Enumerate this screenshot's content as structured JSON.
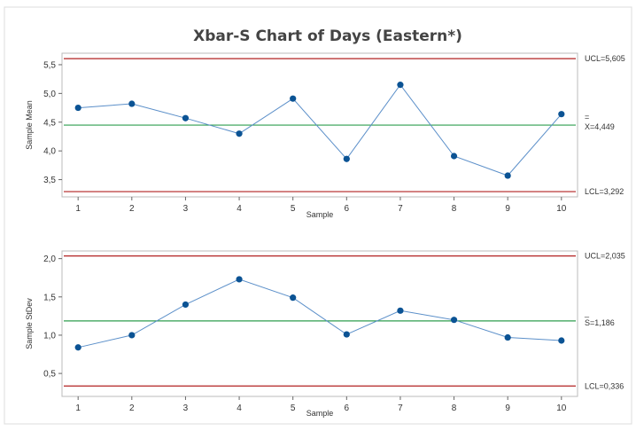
{
  "chart_data": {
    "type": "line",
    "title": "Xbar-S Chart of Days (Eastern*)",
    "colors": {
      "points": "#0b5394",
      "line": "#5b8fc9",
      "center_line": "#2e9e4f",
      "limit_line": "#b22222",
      "frame": "#bbbbbb"
    },
    "panels": [
      {
        "name": "mean",
        "xlabel": "Sample",
        "ylabel": "Sample Mean",
        "xlim": [
          0.7,
          10.3
        ],
        "ylim": [
          3.2,
          5.7
        ],
        "x_ticks": [
          "1",
          "2",
          "3",
          "4",
          "5",
          "6",
          "7",
          "8",
          "9",
          "10"
        ],
        "y_ticks": [
          {
            "value": 3.5,
            "label": "3,5"
          },
          {
            "value": 4.0,
            "label": "4,0"
          },
          {
            "value": 4.5,
            "label": "4,5"
          },
          {
            "value": 5.0,
            "label": "5,0"
          },
          {
            "value": 5.5,
            "label": "5,5"
          }
        ],
        "x": [
          1,
          2,
          3,
          4,
          5,
          6,
          7,
          8,
          9,
          10
        ],
        "values": [
          4.75,
          4.82,
          4.57,
          4.3,
          4.91,
          3.86,
          5.15,
          3.91,
          3.57,
          4.64
        ],
        "ucl": {
          "value": 5.605,
          "label": "UCL=5,605"
        },
        "center": {
          "value": 4.449,
          "bar": "=",
          "label": "X=4,449"
        },
        "lcl": {
          "value": 3.292,
          "label": "LCL=3,292"
        }
      },
      {
        "name": "stdev",
        "xlabel": "Sample",
        "ylabel": "Sample StDev",
        "xlim": [
          0.7,
          10.3
        ],
        "ylim": [
          0.2,
          2.1
        ],
        "x_ticks": [
          "1",
          "2",
          "3",
          "4",
          "5",
          "6",
          "7",
          "8",
          "9",
          "10"
        ],
        "y_ticks": [
          {
            "value": 0.5,
            "label": "0,5"
          },
          {
            "value": 1.0,
            "label": "1,0"
          },
          {
            "value": 1.5,
            "label": "1,5"
          },
          {
            "value": 2.0,
            "label": "2,0"
          }
        ],
        "x": [
          1,
          2,
          3,
          4,
          5,
          6,
          7,
          8,
          9,
          10
        ],
        "values": [
          0.84,
          1.0,
          1.4,
          1.73,
          1.49,
          1.01,
          1.32,
          1.2,
          0.97,
          0.93
        ],
        "ucl": {
          "value": 2.035,
          "label": "UCL=2,035"
        },
        "center": {
          "value": 1.186,
          "bar": "_",
          "label": "S=1,186"
        },
        "lcl": {
          "value": 0.336,
          "label": "LCL=0,336"
        }
      }
    ]
  }
}
